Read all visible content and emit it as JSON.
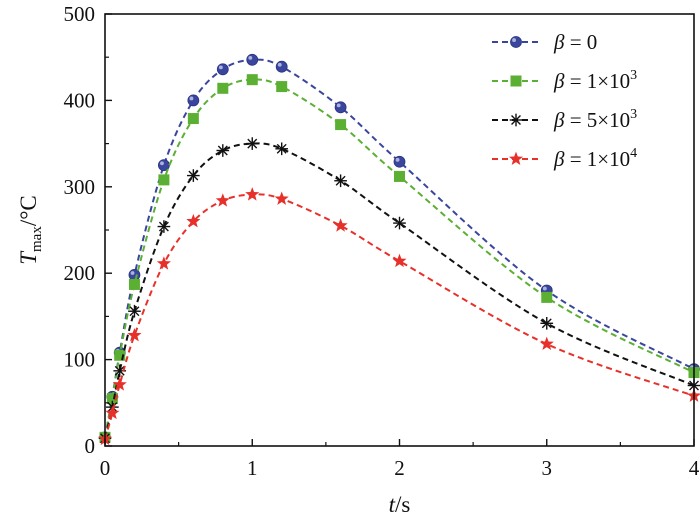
{
  "chart_data": {
    "type": "line",
    "xlabel": {
      "var": "t",
      "sep": "/",
      "unit": "s"
    },
    "ylabel": {
      "var": "T",
      "sub": "max",
      "sep": "/",
      "unit": "°C"
    },
    "xlim": [
      0,
      4
    ],
    "ylim": [
      0,
      500
    ],
    "xticks": [
      0,
      1,
      2,
      3,
      4
    ],
    "yticks": [
      0,
      100,
      200,
      300,
      400,
      500
    ],
    "grid": false,
    "legend_position": "top-right",
    "series": [
      {
        "name": "β = 0",
        "legend": {
          "sym": "β",
          "eq": " = ",
          "coef": "",
          "exp": "",
          "plain": "0"
        },
        "color": "#3a469e",
        "marker": "circle",
        "x": [
          0,
          0.05,
          0.1,
          0.2,
          0.4,
          0.6,
          0.8,
          1.0,
          1.2,
          1.6,
          2.0,
          3.0,
          4.0
        ],
        "y": [
          10,
          57,
          108,
          198,
          325,
          400,
          436,
          447,
          439,
          392,
          329,
          180,
          89
        ]
      },
      {
        "name": "β = 1×10^3",
        "legend": {
          "sym": "β",
          "eq": " = ",
          "coef": "1×10",
          "exp": "3",
          "plain": ""
        },
        "color": "#5bb033",
        "marker": "square",
        "x": [
          0,
          0.05,
          0.1,
          0.2,
          0.4,
          0.6,
          0.8,
          1.0,
          1.2,
          1.6,
          2.0,
          3.0,
          4.0
        ],
        "y": [
          10,
          55,
          105,
          187,
          308,
          379,
          414,
          424,
          416,
          372,
          312,
          172,
          85
        ]
      },
      {
        "name": "β = 5×10^3",
        "legend": {
          "sym": "β",
          "eq": " = ",
          "coef": "5×10",
          "exp": "3",
          "plain": ""
        },
        "color": "#111111",
        "marker": "asterisk",
        "x": [
          0,
          0.05,
          0.1,
          0.2,
          0.4,
          0.6,
          0.8,
          1.0,
          1.2,
          1.6,
          2.0,
          3.0,
          4.0
        ],
        "y": [
          9,
          45,
          87,
          156,
          254,
          313,
          342,
          350,
          344,
          307,
          258,
          142,
          70
        ]
      },
      {
        "name": "β = 1×10^4",
        "legend": {
          "sym": "β",
          "eq": " = ",
          "coef": "1×10",
          "exp": "4",
          "plain": ""
        },
        "color": "#e8302a",
        "marker": "star",
        "x": [
          0,
          0.05,
          0.1,
          0.2,
          0.4,
          0.6,
          0.8,
          1.0,
          1.2,
          1.6,
          2.0,
          3.0,
          4.0
        ],
        "y": [
          8,
          38,
          71,
          128,
          211,
          260,
          284,
          291,
          286,
          255,
          214,
          118,
          58
        ]
      }
    ]
  }
}
